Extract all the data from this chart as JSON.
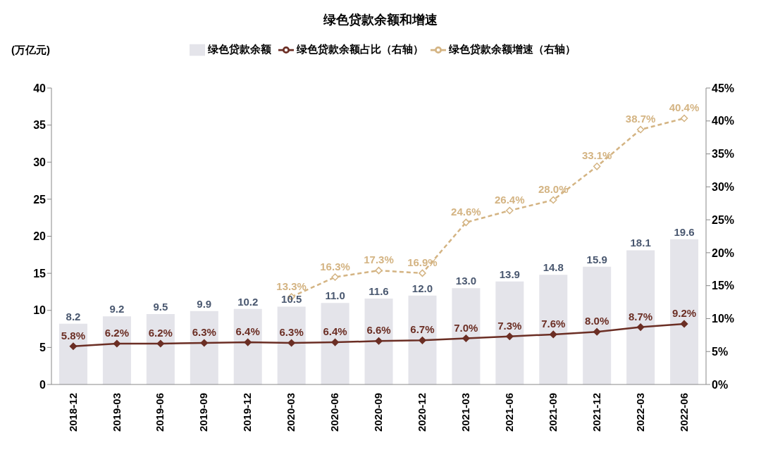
{
  "chart_data": {
    "type": "bar",
    "title": "绿色贷款余额和增速",
    "ylabel": "(万亿元)",
    "categories": [
      "2018-12",
      "2019-03",
      "2019-06",
      "2019-09",
      "2019-12",
      "2020-03",
      "2020-06",
      "2020-09",
      "2020-12",
      "2021-03",
      "2021-06",
      "2021-09",
      "2021-12",
      "2022-03",
      "2022-06"
    ],
    "series": [
      {
        "name": "绿色贷款余额",
        "color": "#e4e4ea",
        "values": [
          8.2,
          9.2,
          9.5,
          9.9,
          10.2,
          10.5,
          11.0,
          11.6,
          12.0,
          13.0,
          13.9,
          14.8,
          15.9,
          18.1,
          19.6
        ],
        "value_labels": [
          "8.2",
          "9.2",
          "9.5",
          "9.9",
          "10.2",
          "10.5",
          "11.0",
          "11.6",
          "12.0",
          "13.0",
          "13.9",
          "14.8",
          "15.9",
          "18.1",
          "19.6"
        ]
      },
      {
        "name": "绿色贷款余额占比（右轴）",
        "type": "line",
        "axis": "y2",
        "color": "#6b2e24",
        "marker": "diamond",
        "line_style": "solid",
        "values": [
          5.8,
          6.2,
          6.2,
          6.3,
          6.4,
          6.3,
          6.4,
          6.6,
          6.7,
          7.0,
          7.3,
          7.6,
          8.0,
          8.7,
          9.2
        ],
        "value_labels": [
          "5.8%",
          "6.2%",
          "6.2%",
          "6.3%",
          "6.4%",
          "6.3%",
          "6.4%",
          "6.6%",
          "6.7%",
          "7.0%",
          "7.3%",
          "7.6%",
          "8.0%",
          "8.7%",
          "9.2%"
        ]
      },
      {
        "name": "绿色贷款余额增速（右轴）",
        "type": "line",
        "axis": "y2",
        "color": "#d4b483",
        "marker": "diamond",
        "line_style": "dashed",
        "values": [
          null,
          null,
          null,
          null,
          null,
          13.3,
          16.3,
          17.3,
          16.9,
          24.6,
          26.4,
          28.0,
          33.1,
          38.7,
          40.4
        ],
        "value_labels": [
          null,
          null,
          null,
          null,
          null,
          "13.3%",
          "16.3%",
          "17.3%",
          "16.9%",
          "24.6%",
          "26.4%",
          "28.0%",
          "33.1%",
          "38.7%",
          "40.4%"
        ]
      }
    ],
    "ylim": [
      0,
      40
    ],
    "yticks": [
      0,
      5,
      10,
      15,
      20,
      25,
      30,
      35,
      40
    ],
    "y2lim": [
      0,
      45
    ],
    "y2ticks": [
      {
        "value": 0,
        "label": "0%"
      },
      {
        "value": 5,
        "label": "5%"
      },
      {
        "value": 10,
        "label": "10%"
      },
      {
        "value": 15,
        "label": "15%"
      },
      {
        "value": 20,
        "label": "20%"
      },
      {
        "value": 25,
        "label": "25%"
      },
      {
        "value": 30,
        "label": "30%"
      },
      {
        "value": 35,
        "label": "35%"
      },
      {
        "value": 40,
        "label": "40%"
      },
      {
        "value": 45,
        "label": "45%"
      }
    ],
    "legend": "top",
    "grid": false
  }
}
